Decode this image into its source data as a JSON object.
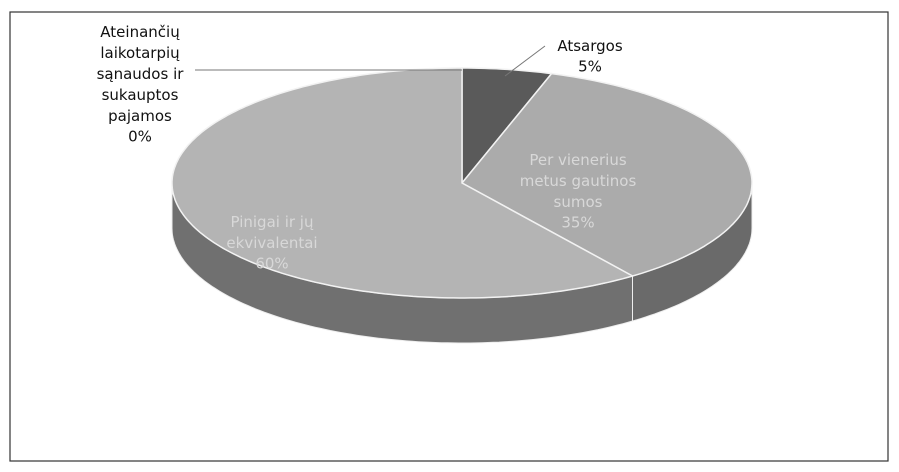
{
  "chart_data": {
    "type": "pie",
    "categories": [
      "Ateinančių laikotarpių sąnaudos ir sukauptos pajamos",
      "Atsargos",
      "Per vienerius metus gautinos sumos",
      "Pinigai ir jų ekvivalentai"
    ],
    "values": [
      0,
      5,
      35,
      60
    ],
    "value_labels": [
      "0%",
      "5%",
      "35%",
      "60%"
    ],
    "colors": [
      "#9a9a9a",
      "#5a5a5a",
      "#ababab",
      "#b4b4b4"
    ]
  }
}
